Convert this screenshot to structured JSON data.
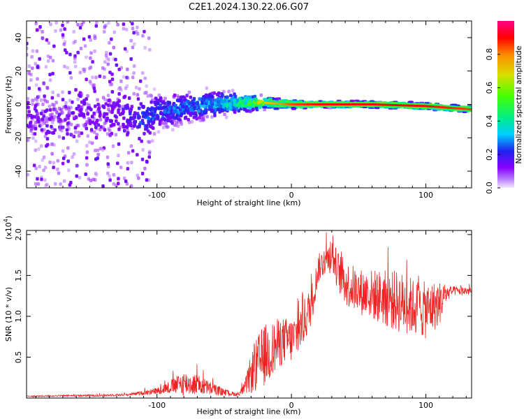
{
  "title": "C2E1.2024.130.22.06.G07",
  "colors": {
    "snr_line": "#ee2222",
    "axis": "#000000"
  },
  "chart_data": [
    {
      "type": "heatmap",
      "name": "spectrogram",
      "xlabel": "Height of straight line (km)",
      "ylabel": "Frequency (Hz)",
      "xlim": [
        -197,
        134
      ],
      "ylim": [
        -50,
        50
      ],
      "xticks": [
        -100,
        0,
        100
      ],
      "xtick_labels": [
        "-100",
        "0",
        "100"
      ],
      "yticks": [
        -40,
        -20,
        0,
        20,
        40
      ],
      "ytick_labels": [
        "-40",
        "-20",
        "0",
        "20",
        "40"
      ],
      "colorbar": {
        "label": "Normalized spectral amplitude",
        "range": [
          0,
          1
        ],
        "ticks": [
          0.0,
          0.2,
          0.4,
          0.6,
          0.8
        ],
        "tick_labels": [
          "0.0",
          "0.2",
          "0.4",
          "0.6",
          "0.8"
        ],
        "colormap": [
          "#e8d8f8",
          "#8800ff",
          "#2222ee",
          "#00ccff",
          "#00ee88",
          "#44ff00",
          "#dddd00",
          "#ff8800",
          "#ff0000",
          "#ff0088"
        ]
      },
      "ridge": {
        "x": [
          -197,
          -160,
          -130,
          -110,
          -100,
          -80,
          -60,
          -40,
          -20,
          0,
          20,
          60,
          100,
          134
        ],
        "center_hz": [
          -8,
          -6,
          -5,
          -10,
          -5,
          -2,
          0,
          1,
          1,
          0,
          0,
          0,
          -1,
          -3
        ],
        "spread_hz": [
          20,
          18,
          16,
          14,
          10,
          8,
          7,
          5,
          3,
          2,
          1.5,
          1.5,
          1.5,
          1.5
        ],
        "amplitude": [
          0.1,
          0.12,
          0.15,
          0.25,
          0.25,
          0.3,
          0.35,
          0.45,
          0.7,
          0.85,
          0.9,
          0.9,
          0.9,
          0.85
        ]
      }
    },
    {
      "type": "line",
      "name": "snr",
      "xlabel": "Height of straight line (km)",
      "ylabel": "SNR (10 * v/v)",
      "yscale_note": "(x10",
      "yscale_exp": "4",
      "scale": 10000,
      "xlim": [
        -197,
        134
      ],
      "ylim": [
        0,
        2.05
      ],
      "xticks": [
        -100,
        0,
        100
      ],
      "xtick_labels": [
        "-100",
        "0",
        "100"
      ],
      "yticks": [
        0.5,
        1.0,
        1.5,
        2.0
      ],
      "ytick_labels": [
        "0.5",
        "1.0",
        "1.5",
        "2.0"
      ],
      "envelope": {
        "x": [
          -197,
          -140,
          -120,
          -100,
          -90,
          -80,
          -70,
          -60,
          -50,
          -40,
          -35,
          -30,
          -25,
          -20,
          -15,
          -10,
          -5,
          0,
          5,
          10,
          15,
          20,
          25,
          30,
          35,
          40,
          45,
          50,
          60,
          70,
          80,
          90,
          100,
          110,
          115,
          120,
          134
        ],
        "base": [
          0.02,
          0.03,
          0.04,
          0.08,
          0.12,
          0.15,
          0.14,
          0.1,
          0.06,
          0.04,
          0.1,
          0.25,
          0.35,
          0.45,
          0.5,
          0.6,
          0.65,
          0.65,
          0.75,
          0.9,
          1.1,
          1.55,
          1.65,
          1.7,
          1.5,
          1.35,
          1.3,
          1.25,
          1.2,
          1.15,
          1.1,
          1.05,
          1.0,
          1.1,
          1.25,
          1.3,
          1.3
        ],
        "variation": [
          0.01,
          0.02,
          0.02,
          0.06,
          0.12,
          0.22,
          0.18,
          0.12,
          0.06,
          0.03,
          0.1,
          0.35,
          0.5,
          0.55,
          0.5,
          0.45,
          0.4,
          0.4,
          0.4,
          0.4,
          0.35,
          0.25,
          0.25,
          0.3,
          0.35,
          0.4,
          0.4,
          0.4,
          0.45,
          0.5,
          0.55,
          0.5,
          0.5,
          0.4,
          0.15,
          0.08,
          0.08
        ]
      }
    }
  ]
}
